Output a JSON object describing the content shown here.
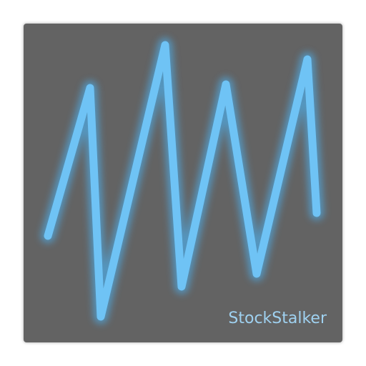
{
  "app": {
    "name": "StockStalker"
  },
  "colors": {
    "tile_background": "#636363",
    "line_glow": "#4db1ef",
    "line_core": "#6fc3f5",
    "label_text": "#9fd1f0"
  },
  "icon": {
    "semantic": "zigzag-stock-line-icon"
  }
}
